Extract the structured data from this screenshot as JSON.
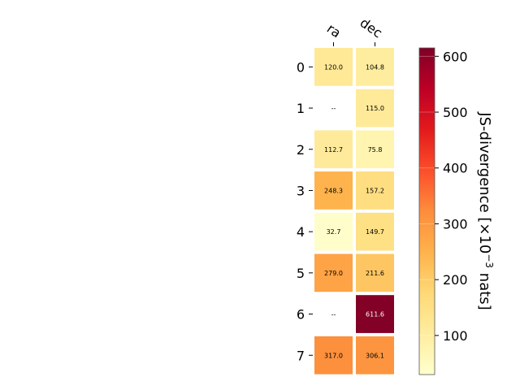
{
  "chart_data": {
    "type": "heatmap",
    "title": "",
    "columns": [
      "ra",
      "dec"
    ],
    "rows": [
      "0",
      "1",
      "2",
      "3",
      "4",
      "5",
      "6",
      "7"
    ],
    "values": [
      [
        120.0,
        104.8
      ],
      [
        null,
        115.0
      ],
      [
        112.7,
        75.8
      ],
      [
        248.3,
        157.2
      ],
      [
        32.7,
        149.7
      ],
      [
        279.0,
        211.6
      ],
      [
        null,
        611.6
      ],
      [
        317.0,
        306.1
      ]
    ],
    "cell_text": [
      [
        "120.0",
        "104.8"
      ],
      [
        "--",
        "115.0"
      ],
      [
        "112.7",
        "75.8"
      ],
      [
        "248.3",
        "157.2"
      ],
      [
        "32.7",
        "149.7"
      ],
      [
        "279.0",
        "211.6"
      ],
      [
        "--",
        "611.6"
      ],
      [
        "317.0",
        "306.1"
      ]
    ],
    "colormap": "YlOrRd",
    "colorbar": {
      "label_prefix": "JS-divergence [×10",
      "label_exp": "−3",
      "label_suffix": " nats]",
      "range": [
        30,
        615
      ],
      "ticks": [
        100,
        200,
        300,
        400,
        500,
        600
      ],
      "tick_labels": [
        "100",
        "200",
        "300",
        "400",
        "500",
        "600"
      ]
    }
  }
}
